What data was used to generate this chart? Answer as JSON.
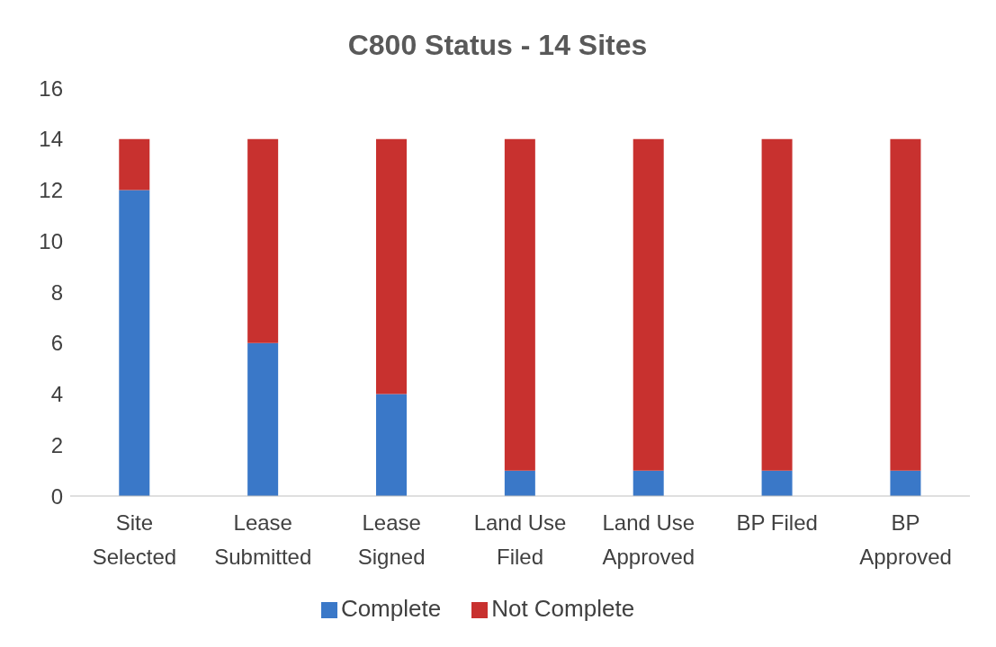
{
  "chart_data": {
    "type": "bar",
    "title": "C800 Status - 14 Sites",
    "categories": [
      "Site Selected",
      "Lease Submitted",
      "Lease Signed",
      "Land Use Filed",
      "Land Use Approved",
      "BP Filed",
      "BP Approved"
    ],
    "stacked": true,
    "legend": "bottom",
    "ylim": [
      0,
      16
    ],
    "yticks": [
      0,
      2,
      4,
      6,
      8,
      10,
      12,
      14,
      16
    ],
    "series": [
      {
        "name": "Complete",
        "color": "#3a78c8",
        "values": [
          12,
          6,
          4,
          1,
          1,
          1,
          1
        ]
      },
      {
        "name": "Not Complete",
        "color": "#c8312f",
        "values": [
          2,
          8,
          10,
          13,
          13,
          13,
          13
        ]
      }
    ]
  }
}
